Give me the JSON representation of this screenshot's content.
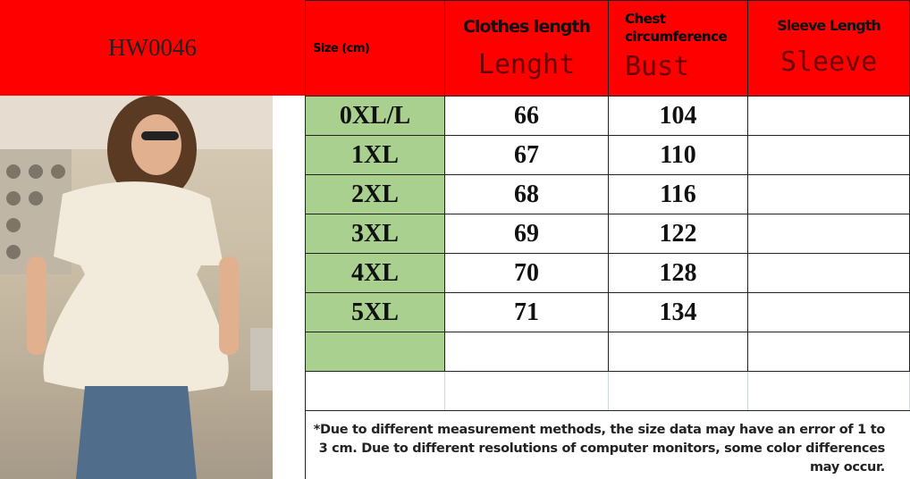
{
  "product_code": "HW0046",
  "colors": {
    "header": "#ff0000",
    "size_cell": "#a9d08e"
  },
  "header": {
    "size_label": "Size (cm)",
    "columns": [
      {
        "label": "Clothes length",
        "sub": "Lenght"
      },
      {
        "label": "Chest circumference",
        "sub": "Bust"
      },
      {
        "label": "Sleeve Length",
        "sub": "Sleeve"
      }
    ]
  },
  "rows": [
    {
      "size": "0XL/L",
      "length": "66",
      "bust": "104",
      "sleeve": ""
    },
    {
      "size": "1XL",
      "length": "67",
      "bust": "110",
      "sleeve": ""
    },
    {
      "size": "2XL",
      "length": "68",
      "bust": "116",
      "sleeve": ""
    },
    {
      "size": "3XL",
      "length": "69",
      "bust": "122",
      "sleeve": ""
    },
    {
      "size": "4XL",
      "length": "70",
      "bust": "128",
      "sleeve": ""
    },
    {
      "size": "5XL",
      "length": "71",
      "bust": "134",
      "sleeve": ""
    }
  ],
  "note": "*Due to different measurement methods, the size data may have an error of 1 to 3 cm. Due to different resolutions of computer monitors, some color differences may occur."
}
